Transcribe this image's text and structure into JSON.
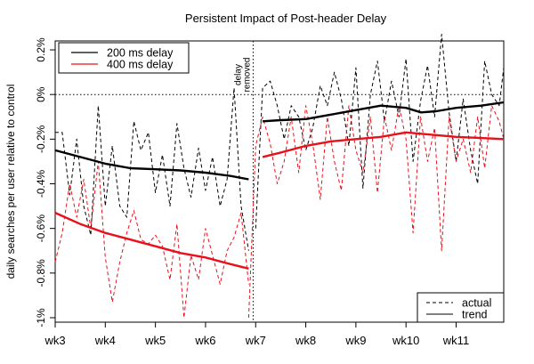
{
  "chart_data": {
    "type": "line",
    "title": "Persistent Impact of Post-header Delay",
    "ylabel": "daily searches per user relative to control",
    "xlabel": "",
    "x_unit": "weeks",
    "xlim": [
      3,
      11.95
    ],
    "ylim": [
      -1.02,
      0.24
    ],
    "x_ticks": [
      {
        "x": 3,
        "label": "wk3"
      },
      {
        "x": 4,
        "label": "wk4"
      },
      {
        "x": 5,
        "label": "wk5"
      },
      {
        "x": 6,
        "label": "wk6"
      },
      {
        "x": 7,
        "label": "wk7"
      },
      {
        "x": 8,
        "label": "wk8"
      },
      {
        "x": 9,
        "label": "wk9"
      },
      {
        "x": 10,
        "label": "wk10"
      },
      {
        "x": 11,
        "label": "wk11"
      }
    ],
    "y_ticks": [
      {
        "y": 0.2,
        "label": "0.2%"
      },
      {
        "y": 0,
        "label": "0%"
      },
      {
        "y": -0.2,
        "label": "-0.2%"
      },
      {
        "y": -0.4,
        "label": "-0.4%"
      },
      {
        "y": -0.6,
        "label": "-0.6%"
      },
      {
        "y": -0.8,
        "label": "-0.8%"
      },
      {
        "y": -1.0,
        "label": "-1%"
      }
    ],
    "grid": false,
    "reference_line_y": 0,
    "annotation": {
      "x": 6.95,
      "lines": [
        "delay",
        "removed"
      ]
    },
    "legend_series": {
      "position": "top-left",
      "entries": [
        {
          "label": "200 ms delay",
          "color": "#000000"
        },
        {
          "label": "400 ms delay",
          "color": "#e8101a"
        }
      ]
    },
    "legend_style": {
      "position": "bottom-right",
      "entries": [
        {
          "label": "actual",
          "style": "dashed"
        },
        {
          "label": "trend",
          "style": "solid"
        }
      ]
    },
    "series": [
      {
        "delay": "200 ms",
        "kind": "actual",
        "color": "#000000",
        "style": "dashed",
        "x": [
          3.0,
          3.14,
          3.29,
          3.43,
          3.57,
          3.71,
          3.86,
          4.0,
          4.14,
          4.29,
          4.43,
          4.57,
          4.71,
          4.86,
          5.0,
          5.14,
          5.29,
          5.43,
          5.57,
          5.71,
          5.86,
          6.0,
          6.14,
          6.29,
          6.43,
          6.57,
          6.71,
          6.86
        ],
        "y": [
          -0.17,
          -0.17,
          -0.45,
          -0.2,
          -0.5,
          -0.63,
          -0.05,
          -0.5,
          -0.23,
          -0.5,
          -0.55,
          -0.12,
          -0.25,
          -0.17,
          -0.44,
          -0.27,
          -0.5,
          -0.13,
          -0.33,
          -0.46,
          -0.24,
          -0.43,
          -0.28,
          -0.5,
          -0.38,
          0.03,
          -0.5,
          -0.7
        ]
      },
      {
        "delay": "200 ms",
        "kind": "actual",
        "color": "#000000",
        "style": "dashed",
        "x": [
          7.0,
          7.14,
          7.29,
          7.43,
          7.57,
          7.71,
          7.86,
          8.0,
          8.14,
          8.29,
          8.43,
          8.57,
          8.71,
          8.86,
          9.0,
          9.14,
          9.29,
          9.43,
          9.57,
          9.71,
          9.86,
          10.0,
          10.14,
          10.29,
          10.43,
          10.57,
          10.71,
          10.86,
          11.0,
          11.14,
          11.29,
          11.43,
          11.57,
          11.71,
          11.86,
          11.95
        ],
        "y": [
          -0.6,
          0.03,
          0.06,
          -0.05,
          -0.2,
          -0.05,
          -0.1,
          -0.25,
          -0.15,
          0.04,
          -0.05,
          0.1,
          -0.02,
          -0.23,
          0.12,
          -0.42,
          0.0,
          0.15,
          -0.12,
          0.06,
          -0.1,
          0.16,
          -0.3,
          -0.03,
          0.13,
          -0.1,
          0.27,
          -0.08,
          -0.3,
          -0.02,
          -0.25,
          -0.4,
          0.15,
          0.0,
          -0.05,
          0.12
        ]
      },
      {
        "delay": "400 ms",
        "kind": "actual",
        "color": "#e8101a",
        "style": "dashed",
        "x": [
          3.0,
          3.14,
          3.29,
          3.43,
          3.57,
          3.71,
          3.86,
          4.0,
          4.14,
          4.29,
          4.43,
          4.57,
          4.71,
          4.86,
          5.0,
          5.14,
          5.29,
          5.43,
          5.57,
          5.71,
          5.86,
          6.0,
          6.14,
          6.29,
          6.43,
          6.57,
          6.71,
          6.86
        ],
        "y": [
          -0.75,
          -0.62,
          -0.4,
          -0.55,
          -0.38,
          -0.6,
          -0.3,
          -0.73,
          -0.93,
          -0.75,
          -0.62,
          -0.52,
          -0.65,
          -0.67,
          -0.63,
          -0.68,
          -0.83,
          -0.58,
          -1.0,
          -0.72,
          -0.83,
          -0.6,
          -0.72,
          -0.85,
          -0.7,
          -0.64,
          -0.53,
          -0.85
        ]
      },
      {
        "delay": "400 ms",
        "kind": "actual",
        "color": "#e8101a",
        "style": "dashed",
        "x": [
          6.86,
          7.0,
          7.14,
          7.29,
          7.43,
          7.57,
          7.71,
          7.86,
          8.0,
          8.14,
          8.29,
          8.43,
          8.57,
          8.71,
          8.86,
          9.0,
          9.14,
          9.29,
          9.43,
          9.57,
          9.71,
          9.86,
          10.0,
          10.14,
          10.29,
          10.43,
          10.57,
          10.71,
          10.86,
          11.0,
          11.14,
          11.29,
          11.43,
          11.57,
          11.71,
          11.86,
          11.95
        ],
        "y": [
          -1.0,
          -0.23,
          -0.1,
          -0.22,
          -0.4,
          -0.3,
          -0.1,
          -0.35,
          -0.05,
          -0.22,
          -0.47,
          -0.1,
          -0.3,
          -0.43,
          -0.05,
          -0.25,
          -0.35,
          -0.1,
          -0.44,
          -0.1,
          -0.25,
          -0.05,
          -0.2,
          -0.62,
          -0.1,
          -0.3,
          -0.15,
          -0.7,
          -0.1,
          -0.3,
          -0.2,
          -0.35,
          -0.1,
          -0.33,
          -0.05,
          -0.12,
          -0.2
        ]
      },
      {
        "delay": "200 ms",
        "kind": "trend",
        "color": "#000000",
        "style": "solid",
        "x": [
          3.0,
          3.5,
          4.0,
          4.5,
          5.0,
          5.5,
          6.0,
          6.5,
          6.86
        ],
        "y": [
          -0.25,
          -0.28,
          -0.31,
          -0.33,
          -0.335,
          -0.34,
          -0.35,
          -0.365,
          -0.38
        ]
      },
      {
        "delay": "200 ms",
        "kind": "trend",
        "color": "#000000",
        "style": "solid",
        "x": [
          7.14,
          7.5,
          8.0,
          8.5,
          9.0,
          9.5,
          10.0,
          10.3,
          10.6,
          11.0,
          11.5,
          11.95
        ],
        "y": [
          -0.12,
          -0.115,
          -0.11,
          -0.09,
          -0.07,
          -0.05,
          -0.06,
          -0.08,
          -0.075,
          -0.06,
          -0.05,
          -0.035
        ]
      },
      {
        "delay": "400 ms",
        "kind": "trend",
        "color": "#e8101a",
        "style": "solid",
        "x": [
          3.0,
          3.5,
          4.0,
          4.5,
          5.0,
          5.5,
          6.0,
          6.5,
          6.86
        ],
        "y": [
          -0.53,
          -0.58,
          -0.62,
          -0.65,
          -0.68,
          -0.71,
          -0.73,
          -0.76,
          -0.78
        ]
      },
      {
        "delay": "400 ms",
        "kind": "trend",
        "color": "#e8101a",
        "style": "solid",
        "x": [
          7.14,
          7.5,
          8.0,
          8.5,
          9.0,
          9.5,
          10.0,
          10.5,
          11.0,
          11.5,
          11.95
        ],
        "y": [
          -0.28,
          -0.26,
          -0.23,
          -0.21,
          -0.2,
          -0.19,
          -0.17,
          -0.18,
          -0.19,
          -0.195,
          -0.2
        ]
      }
    ]
  }
}
